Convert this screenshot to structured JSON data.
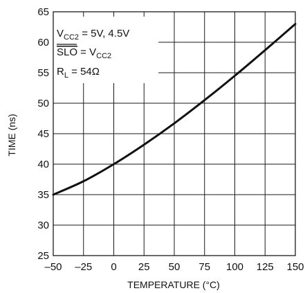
{
  "chart_data": {
    "type": "line",
    "title": "",
    "xlabel": "TEMPERATURE (°C)",
    "ylabel": "TIME (ns)",
    "xlim": [
      -50,
      150
    ],
    "ylim": [
      25,
      65
    ],
    "x_ticks": [
      "–50",
      "–25",
      "0",
      "25",
      "50",
      "75",
      "100",
      "125",
      "150"
    ],
    "y_ticks": [
      "25",
      "30",
      "35",
      "40",
      "45",
      "50",
      "55",
      "60",
      "65"
    ],
    "grid": true,
    "series": [
      {
        "x": [
          -50,
          -25,
          0,
          25,
          50,
          75,
          100,
          125,
          150
        ],
        "y": [
          35,
          37.2,
          40,
          43.2,
          46.7,
          50.5,
          54.5,
          58.7,
          63
        ]
      }
    ],
    "annotations": {
      "line1": {
        "main": "V",
        "sub": "CC2",
        "rest": " = 5V, 4.5V"
      },
      "line2": {
        "overline": "SLO",
        "rest": " = V",
        "sub": "CC2"
      },
      "line3": {
        "main": "R",
        "sub": "L",
        "rest": " = 54Ω"
      }
    }
  }
}
